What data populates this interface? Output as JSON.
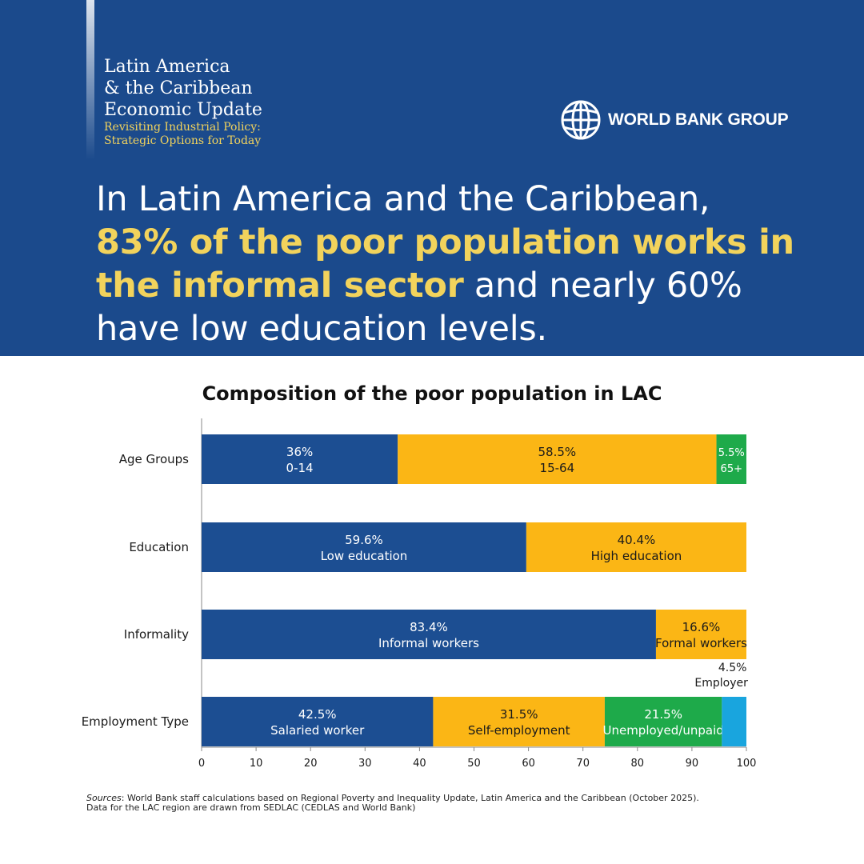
{
  "report": {
    "title_lines": [
      "Latin America",
      "& the Caribbean",
      "Economic Update"
    ],
    "subtitle_lines": [
      "Revisiting Industrial Policy:",
      "Strategic Options for Today"
    ]
  },
  "logo": {
    "icon": "globe-icon",
    "name": "WORLD BANK GROUP"
  },
  "headline": {
    "part1": "In Latin America and the Caribbean,",
    "highlight": "83% of the poor population works in the informal sector",
    "part2": " and nearly 60% have low education levels."
  },
  "colors": {
    "header_bg": "#1b4a8c",
    "highlight": "#f2d35c",
    "blue": "#1c4e92",
    "yellow": "#fbb615",
    "green": "#1eaa4a",
    "cyan": "#19a5de"
  },
  "chart_data": {
    "type": "bar",
    "orientation": "horizontal",
    "stacked": true,
    "title": "Composition of the poor population in LAC",
    "xlim": [
      0,
      100
    ],
    "xticks": [
      0,
      10,
      20,
      30,
      40,
      50,
      60,
      70,
      80,
      90,
      100
    ],
    "categories": [
      "Age Groups",
      "Education",
      "Informality",
      "Employment Type"
    ],
    "bars": [
      {
        "category": "Age Groups",
        "segments": [
          {
            "label": "0-14",
            "value": 36,
            "value_label": "36%",
            "color": "#1c4e92"
          },
          {
            "label": "15-64",
            "value": 58.5,
            "value_label": "58.5%",
            "color": "#fbb615"
          },
          {
            "label": "65+",
            "value": 5.5,
            "value_label": "5.5%",
            "color": "#1eaa4a"
          }
        ]
      },
      {
        "category": "Education",
        "segments": [
          {
            "label": "Low education",
            "value": 59.6,
            "value_label": "59.6%",
            "color": "#1c4e92"
          },
          {
            "label": "High education",
            "value": 40.4,
            "value_label": "40.4%",
            "color": "#fbb615"
          }
        ]
      },
      {
        "category": "Informality",
        "segments": [
          {
            "label": "Informal workers",
            "value": 83.4,
            "value_label": "83.4%",
            "color": "#1c4e92"
          },
          {
            "label": "Formal workers",
            "value": 16.6,
            "value_label": "16.6%",
            "color": "#fbb615"
          }
        ]
      },
      {
        "category": "Employment Type",
        "segments": [
          {
            "label": "Salaried worker",
            "value": 42.5,
            "value_label": "42.5%",
            "color": "#1c4e92"
          },
          {
            "label": "Self-employment",
            "value": 31.5,
            "value_label": "31.5%",
            "color": "#fbb615"
          },
          {
            "label": "Unemployed/unpaid",
            "value": 21.5,
            "value_label": "21.5%",
            "color": "#1eaa4a"
          },
          {
            "label": "Employer",
            "value": 4.5,
            "value_label": "4.5%",
            "color": "#19a5de",
            "label_outside": true
          }
        ]
      }
    ]
  },
  "sources": {
    "label": "Sources",
    "text": ": World Bank staff calculations based on Regional Poverty and Inequality Update, Latin  America and the Caribbean (October 2025).",
    "line2": "Data for the LAC region are drawn from SEDLAC (CEDLAS and World Bank)"
  }
}
